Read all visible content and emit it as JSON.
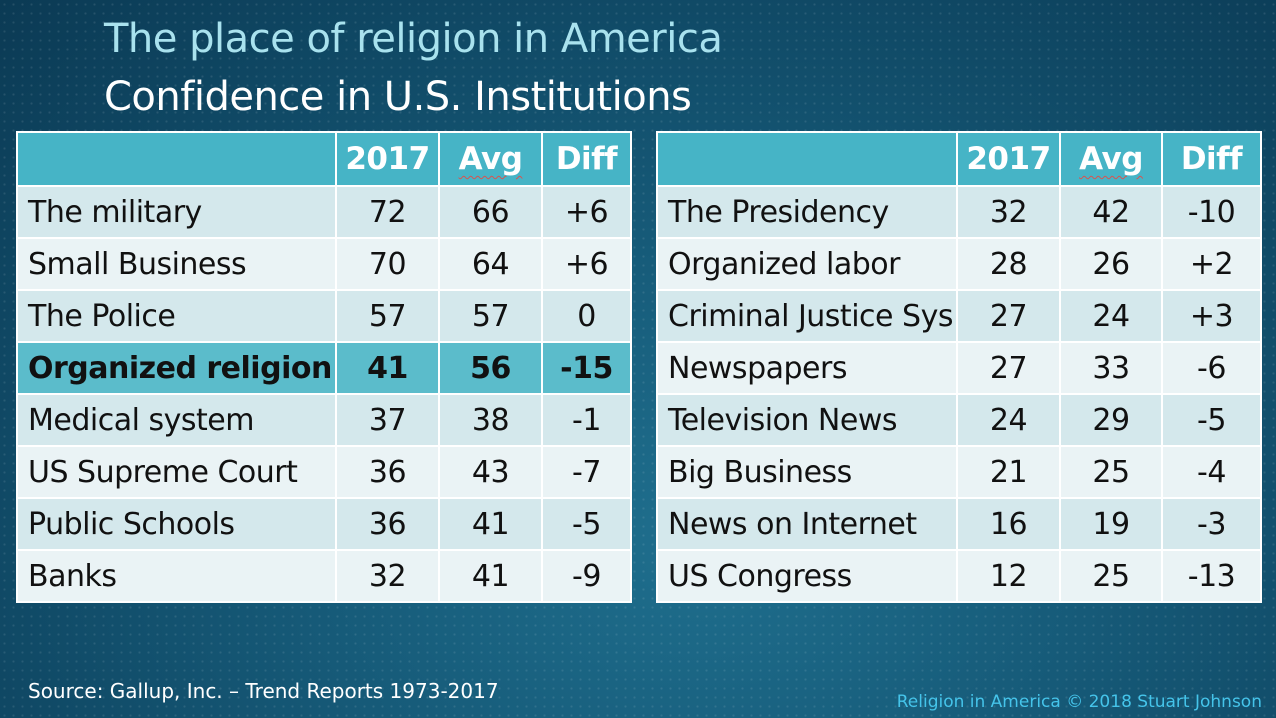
{
  "title": "The place of religion in America",
  "subtitle": "Confidence in U.S. Institutions",
  "columns": {
    "year": "2017",
    "avg": "Avg",
    "diff": "Diff"
  },
  "left_table": [
    {
      "label": "The military",
      "y2017": "72",
      "avg": "66",
      "diff": "+6"
    },
    {
      "label": "Small Business",
      "y2017": "70",
      "avg": "64",
      "diff": "+6"
    },
    {
      "label": "The Police",
      "y2017": "57",
      "avg": "57",
      "diff": "0"
    },
    {
      "label": "Organized religion",
      "y2017": "41",
      "avg": "56",
      "diff": "-15"
    },
    {
      "label": "Medical system",
      "y2017": "37",
      "avg": "38",
      "diff": "-1"
    },
    {
      "label": "US Supreme Court",
      "y2017": "36",
      "avg": "43",
      "diff": "-7"
    },
    {
      "label": "Public Schools",
      "y2017": "36",
      "avg": "41",
      "diff": "-5"
    },
    {
      "label": "Banks",
      "y2017": "32",
      "avg": "41",
      "diff": "-9"
    }
  ],
  "right_table": [
    {
      "label": "The Presidency",
      "y2017": "32",
      "avg": "42",
      "diff": "-10"
    },
    {
      "label": "Organized labor",
      "y2017": "28",
      "avg": "26",
      "diff": "+2"
    },
    {
      "label": "Criminal Justice Sys",
      "y2017": "27",
      "avg": "24",
      "diff": "+3"
    },
    {
      "label": "Newspapers",
      "y2017": "27",
      "avg": "33",
      "diff": "-6"
    },
    {
      "label": "Television News",
      "y2017": "24",
      "avg": "29",
      "diff": "-5"
    },
    {
      "label": "Big Business",
      "y2017": "21",
      "avg": "25",
      "diff": "-4"
    },
    {
      "label": "News on Internet",
      "y2017": "16",
      "avg": "19",
      "diff": "-3"
    },
    {
      "label": "US Congress",
      "y2017": "12",
      "avg": "25",
      "diff": "-13"
    }
  ],
  "highlighted_row": "Organized religion",
  "source": "Source: Gallup, Inc. – Trend Reports 1973-2017",
  "copyright": "Religion in America © 2018 Stuart Johnson",
  "colors": {
    "header_fill": "#46b4c6",
    "highlight_fill": "#5bbccb",
    "row_light": "#eaf3f5",
    "row_dark": "#d4e8ec",
    "title_accent": "#a9e2ee",
    "copyright_text": "#45c4ea"
  }
}
